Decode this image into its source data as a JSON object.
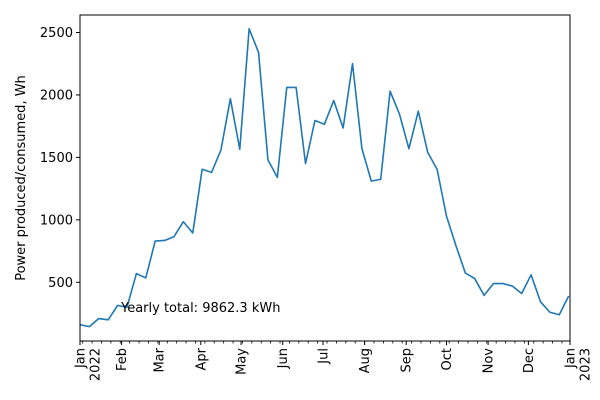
{
  "chart_data": {
    "type": "line",
    "xlabel": "",
    "ylabel": "Power produced/consumed, Wh",
    "ylim": [
      30,
      2640
    ],
    "xlim": [
      "2022-01-01",
      "2023-01-01"
    ],
    "yticks": [
      500,
      1000,
      1500,
      2000,
      2500
    ],
    "xticks": [
      {
        "date": "2022-01-01",
        "label": "Jan",
        "label2": "2022"
      },
      {
        "date": "2022-02-01",
        "label": "Feb"
      },
      {
        "date": "2022-03-01",
        "label": "Mar"
      },
      {
        "date": "2022-04-01",
        "label": "Apr"
      },
      {
        "date": "2022-05-01",
        "label": "May"
      },
      {
        "date": "2022-06-01",
        "label": "Jun"
      },
      {
        "date": "2022-07-01",
        "label": "Jul"
      },
      {
        "date": "2022-08-01",
        "label": "Aug"
      },
      {
        "date": "2022-09-01",
        "label": "Sep"
      },
      {
        "date": "2022-10-01",
        "label": "Oct"
      },
      {
        "date": "2022-11-01",
        "label": "Nov"
      },
      {
        "date": "2022-12-01",
        "label": "Dec"
      },
      {
        "date": "2023-01-01",
        "label": "Jan",
        "label2": "2023"
      }
    ],
    "grid": false,
    "line_color": "#1f77b4",
    "annotation": "Yearly total: 9862.3 kWh",
    "series": [
      {
        "x": [
          "2022-01-01",
          "2022-01-08",
          "2022-01-15",
          "2022-01-22",
          "2022-01-29",
          "2022-02-05",
          "2022-02-12",
          "2022-02-19",
          "2022-02-26",
          "2022-03-05",
          "2022-03-12",
          "2022-03-19",
          "2022-03-26",
          "2022-04-02",
          "2022-04-09",
          "2022-04-16",
          "2022-04-23",
          "2022-04-30",
          "2022-05-07",
          "2022-05-14",
          "2022-05-21",
          "2022-05-28",
          "2022-06-04",
          "2022-06-11",
          "2022-06-18",
          "2022-06-25",
          "2022-07-02",
          "2022-07-09",
          "2022-07-16",
          "2022-07-23",
          "2022-07-30",
          "2022-08-06",
          "2022-08-13",
          "2022-08-20",
          "2022-08-27",
          "2022-09-03",
          "2022-09-10",
          "2022-09-17",
          "2022-09-24",
          "2022-10-01",
          "2022-10-08",
          "2022-10-15",
          "2022-10-22",
          "2022-10-29",
          "2022-11-05",
          "2022-11-12",
          "2022-11-19",
          "2022-11-26",
          "2022-12-03",
          "2022-12-10",
          "2022-12-17",
          "2022-12-24",
          "2022-12-31"
        ],
        "y": [
          160,
          145,
          210,
          200,
          315,
          300,
          570,
          535,
          830,
          835,
          865,
          985,
          895,
          1405,
          1380,
          1560,
          1970,
          1565,
          2530,
          2340,
          1480,
          1340,
          2060,
          2060,
          1450,
          1795,
          1765,
          1955,
          1735,
          2250,
          1570,
          1310,
          1325,
          2030,
          1845,
          1570,
          1870,
          1540,
          1405,
          1030,
          795,
          575,
          530,
          395,
          490,
          490,
          470,
          410,
          560,
          345,
          260,
          240,
          390
        ]
      }
    ]
  }
}
